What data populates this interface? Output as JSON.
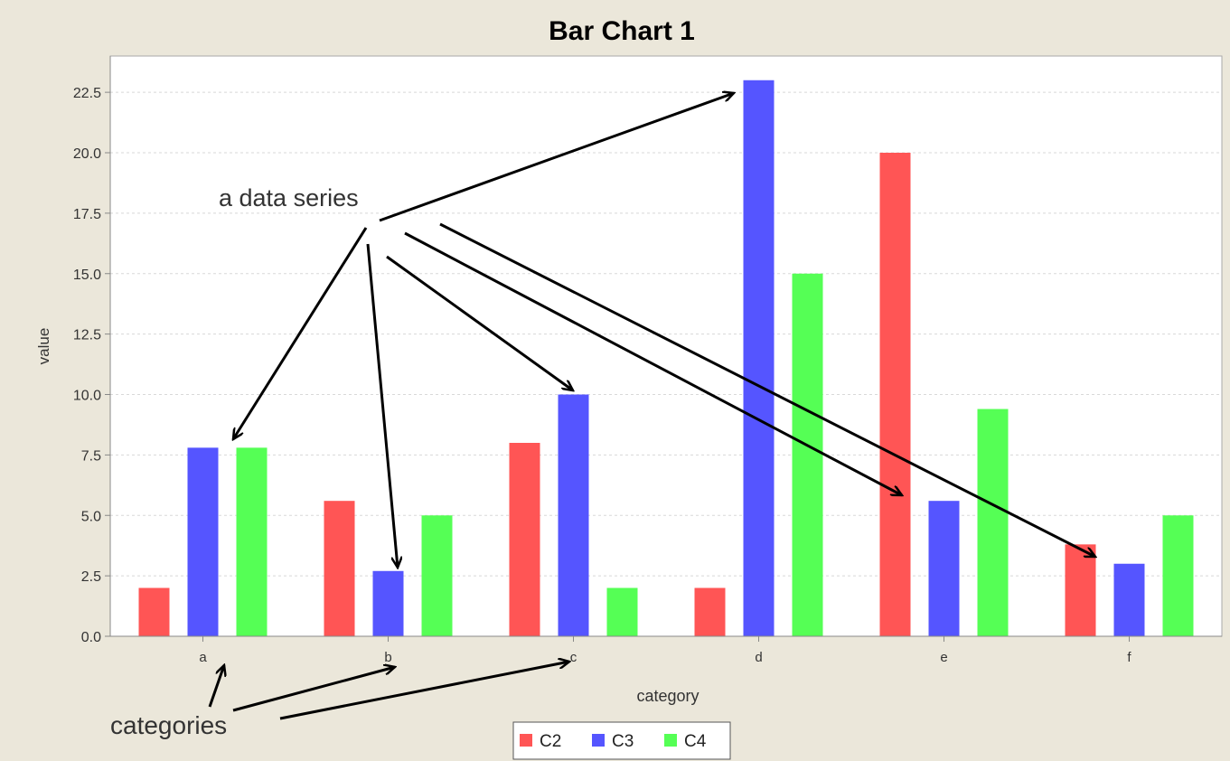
{
  "chart_data": {
    "type": "bar",
    "title": "Bar Chart 1",
    "xlabel": "category",
    "ylabel": "value",
    "categories": [
      "a",
      "b",
      "c",
      "d",
      "e",
      "f"
    ],
    "ylim": [
      0,
      24
    ],
    "yticks": [
      0.0,
      2.5,
      5.0,
      7.5,
      10.0,
      12.5,
      15.0,
      17.5,
      20.0,
      22.5
    ],
    "ytick_labels": [
      "0.0",
      "2.5",
      "5.0",
      "7.5",
      "10.0",
      "12.5",
      "15.0",
      "17.5",
      "20.0",
      "22.5"
    ],
    "grid": true,
    "legend_position": "bottom",
    "series": [
      {
        "name": "C2",
        "color": "#ff5555",
        "values": [
          2.0,
          5.6,
          8.0,
          2.0,
          20.0,
          3.8
        ]
      },
      {
        "name": "C3",
        "color": "#5555ff",
        "values": [
          7.8,
          2.7,
          10.0,
          23.0,
          5.6,
          3.0
        ]
      },
      {
        "name": "C4",
        "color": "#55ff55",
        "values": [
          7.8,
          5.0,
          2.0,
          15.0,
          9.4,
          5.0
        ]
      }
    ],
    "annotations": {
      "series_note": "a data series",
      "categories_note": "categories"
    }
  },
  "colors": {
    "background": "#ebe7da",
    "plot_background": "#ffffff",
    "gridline": "#d8d8d8",
    "arrow": "#000000"
  }
}
